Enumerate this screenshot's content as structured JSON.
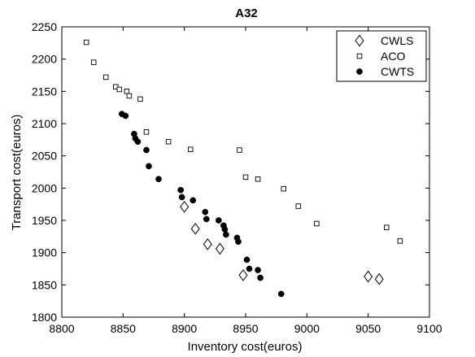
{
  "chart_data": {
    "type": "scatter",
    "title": "A32",
    "xlabel": "Inventory cost(euros)",
    "ylabel": "Transport cost(euros)",
    "xlim": [
      8800,
      9100
    ],
    "ylim": [
      1800,
      2250
    ],
    "xticks": [
      8800,
      8850,
      8900,
      8950,
      9000,
      9050,
      9100
    ],
    "yticks": [
      1800,
      1850,
      1900,
      1950,
      2000,
      2050,
      2100,
      2150,
      2200,
      2250
    ],
    "grid": false,
    "legend_position": "top-right",
    "series": [
      {
        "name": "CWLS",
        "marker": "diamond",
        "points": [
          [
            8900,
            1971
          ],
          [
            8909,
            1937
          ],
          [
            8919,
            1913
          ],
          [
            8929,
            1906
          ],
          [
            8948,
            1865
          ],
          [
            9050,
            1863
          ],
          [
            9059,
            1859
          ]
        ]
      },
      {
        "name": "ACO",
        "marker": "square",
        "points": [
          [
            8820,
            2226
          ],
          [
            8826,
            2195
          ],
          [
            8836,
            2172
          ],
          [
            8844,
            2157
          ],
          [
            8847,
            2153
          ],
          [
            8853,
            2150
          ],
          [
            8855,
            2143
          ],
          [
            8864,
            2138
          ],
          [
            8869,
            2087
          ],
          [
            8887,
            2072
          ],
          [
            8905,
            2060
          ],
          [
            8945,
            2059
          ],
          [
            8950,
            2017
          ],
          [
            8960,
            2014
          ],
          [
            8981,
            1999
          ],
          [
            8993,
            1972
          ],
          [
            9008,
            1945
          ],
          [
            9065,
            1939
          ],
          [
            9076,
            1918
          ]
        ]
      },
      {
        "name": "CWTS",
        "marker": "circle",
        "points": [
          [
            8849,
            2115
          ],
          [
            8852,
            2112
          ],
          [
            8859,
            2084
          ],
          [
            8860,
            2077
          ],
          [
            8862,
            2072
          ],
          [
            8869,
            2059
          ],
          [
            8871,
            2034
          ],
          [
            8879,
            2014
          ],
          [
            8897,
            1997
          ],
          [
            8898,
            1986
          ],
          [
            8907,
            1981
          ],
          [
            8917,
            1963
          ],
          [
            8918,
            1952
          ],
          [
            8928,
            1950
          ],
          [
            8932,
            1942
          ],
          [
            8933,
            1936
          ],
          [
            8934,
            1928
          ],
          [
            8943,
            1923
          ],
          [
            8944,
            1917
          ],
          [
            8951,
            1889
          ],
          [
            8953,
            1875
          ],
          [
            8960,
            1873
          ],
          [
            8962,
            1861
          ],
          [
            8979,
            1836
          ]
        ]
      }
    ]
  }
}
